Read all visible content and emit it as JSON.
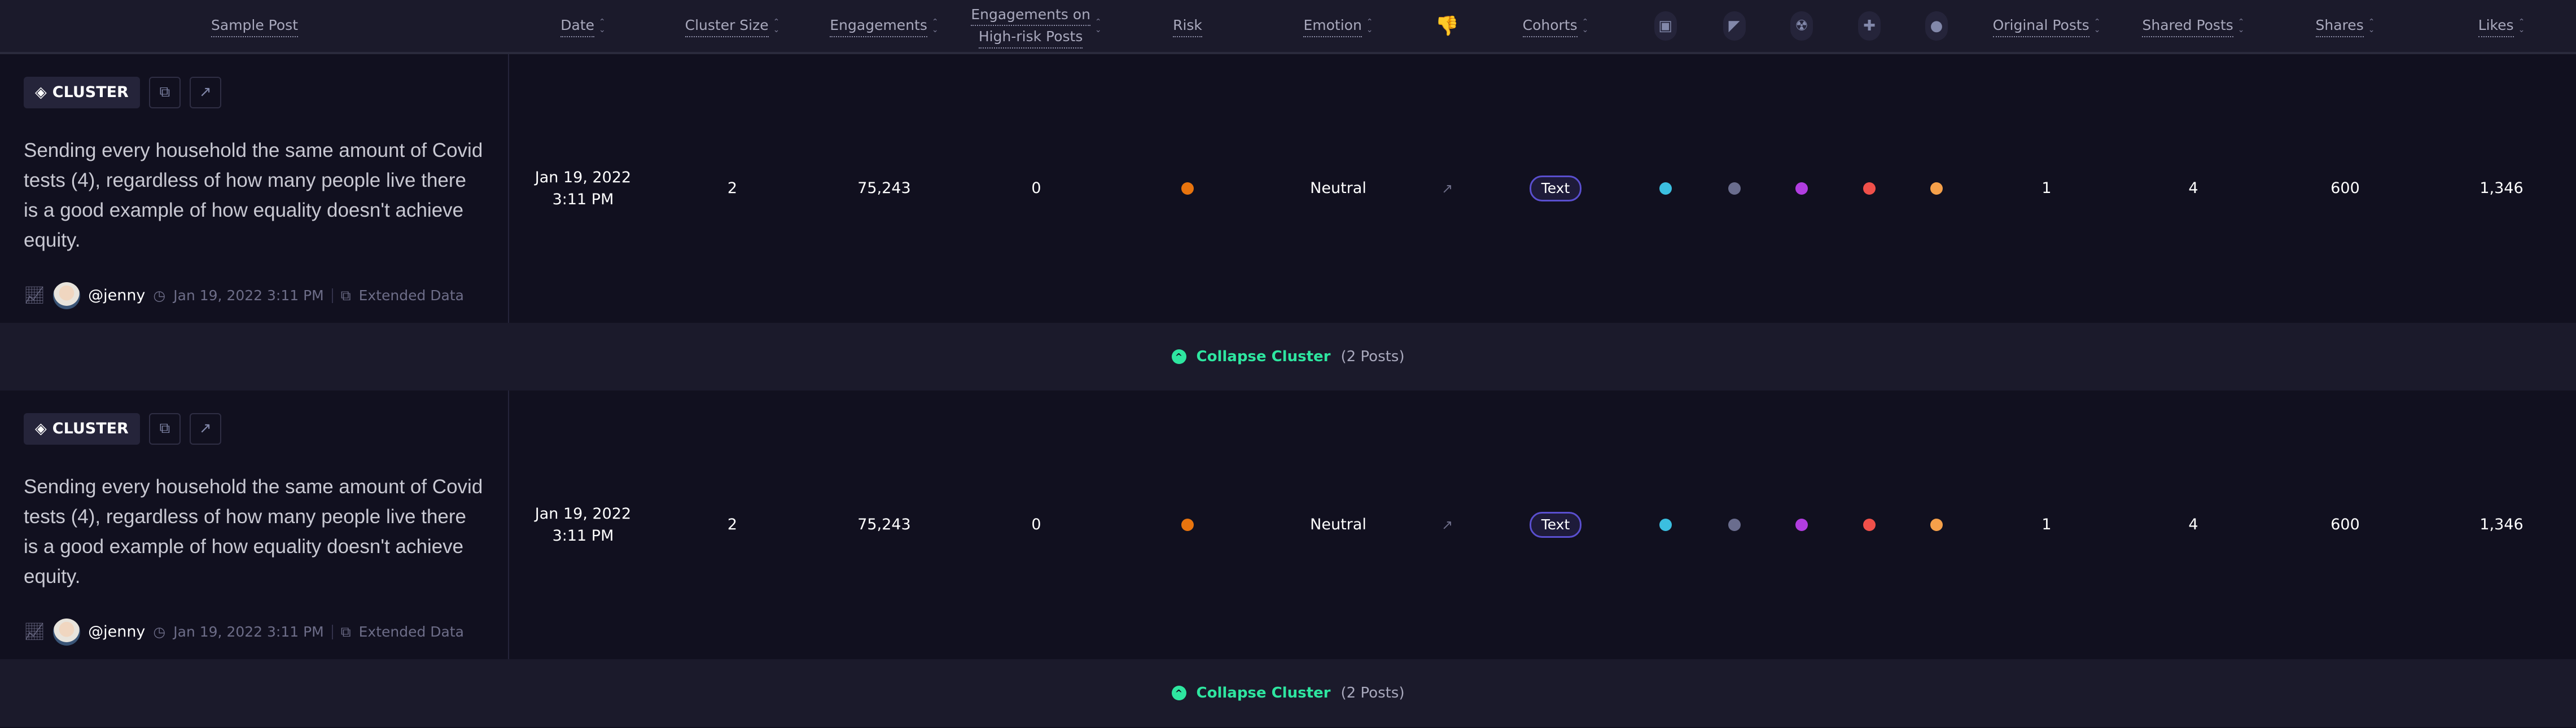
{
  "columns": [
    {
      "label": "Sample Post",
      "sortable": false
    },
    {
      "label": "Date",
      "sortable": true
    },
    {
      "label": "Cluster Size",
      "sortable": true
    },
    {
      "label": "Engagements",
      "sortable": true
    },
    {
      "label": "Engagements on High-risk Posts",
      "line1": "Engagements on",
      "line2": "High-risk Posts",
      "sortable": true
    },
    {
      "label": "Risk",
      "sortable": false
    },
    {
      "label": "Emotion",
      "sortable": true
    },
    {
      "icon": "thumbs-up-down-icon"
    },
    {
      "label": "Cohorts",
      "sortable": true
    },
    {
      "icon": "robot-icon"
    },
    {
      "icon": "megaphone-icon"
    },
    {
      "icon": "radiation-icon"
    },
    {
      "icon": "crosshair-icon"
    },
    {
      "icon": "user-circle-icon"
    },
    {
      "label": "Original Posts",
      "sortable": true
    },
    {
      "label": "Shared Posts",
      "sortable": true
    },
    {
      "label": "Shares",
      "sortable": true
    },
    {
      "label": "Likes",
      "sortable": true
    }
  ],
  "rows": [
    {
      "badge": "CLUSTER",
      "text": "Sending every household the same amount of Covid tests (4), regardless of how many people live there is a good example of how equality doesn't achieve equity.",
      "user": "@jenny",
      "posted": "Jan 19, 2022 3:11 PM",
      "extended": "Extended Data",
      "date": "Jan 19, 2022",
      "time": "3:11 PM",
      "cluster_size": "2",
      "engagements": "75,243",
      "high_risk": "0",
      "risk_color": "#e8740e",
      "emotion": "Neutral",
      "cohort": "Text",
      "dots": [
        "#3bbfe0",
        "#6a6d8e",
        "#b13de0",
        "#f0504a",
        "#f5a04a"
      ],
      "original_posts": "1",
      "shared_posts": "4",
      "shares": "600",
      "likes": "1,346",
      "collapse": "Collapse Cluster",
      "collapse_count": "(2 Posts)"
    },
    {
      "badge": "CLUSTER",
      "text": "Sending every household the same amount of Covid tests (4), regardless of how many people live there is a good example of how equality doesn't achieve equity.",
      "user": "@jenny",
      "posted": "Jan 19, 2022 3:11 PM",
      "extended": "Extended Data",
      "date": "Jan 19, 2022",
      "time": "3:11 PM",
      "cluster_size": "2",
      "engagements": "75,243",
      "high_risk": "0",
      "risk_color": "#e8740e",
      "emotion": "Neutral",
      "cohort": "Text",
      "dots": [
        "#3bbfe0",
        "#6a6d8e",
        "#b13de0",
        "#f0504a",
        "#f5a04a"
      ],
      "original_posts": "1",
      "shared_posts": "4",
      "shares": "600",
      "likes": "1,346",
      "collapse": "Collapse Cluster",
      "collapse_count": "(2 Posts)"
    }
  ]
}
